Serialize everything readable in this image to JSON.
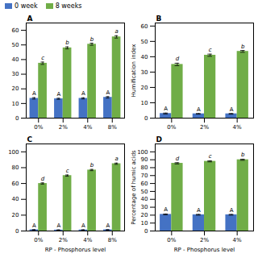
{
  "chart_data": [
    {
      "type": "bar",
      "title": "A",
      "categories": [
        "0%",
        "2%",
        "4%",
        "8%"
      ],
      "series": [
        {
          "name": "0 week",
          "color": "#4472c4",
          "values": [
            13.5,
            13.2,
            13.5,
            14.2
          ],
          "errors": [
            0.5,
            0.4,
            0.4,
            0.5
          ],
          "annotations": [
            "A",
            "A",
            "A",
            "A"
          ]
        },
        {
          "name": "8 weeks",
          "color": "#70ad47",
          "values": [
            37.5,
            48.0,
            50.5,
            55.5
          ],
          "errors": [
            0.8,
            0.7,
            0.7,
            0.8
          ],
          "annotations": [
            "c",
            "b",
            "b",
            "a"
          ]
        }
      ],
      "ylim": [
        0,
        65
      ],
      "yticks": [
        0,
        10,
        20,
        30,
        40,
        50,
        60
      ],
      "legend": "upper left"
    },
    {
      "type": "bar",
      "title": "B",
      "ylabel": "Humification index",
      "categories": [
        "0%",
        "2%",
        "4%"
      ],
      "series": [
        {
          "name": "0 week",
          "color": "#4472c4",
          "values": [
            3.0,
            2.8,
            2.8
          ],
          "errors": [
            0.3,
            0.2,
            0.2
          ],
          "annotations": [
            "A",
            "A",
            "A"
          ]
        },
        {
          "name": "8 weeks",
          "color": "#70ad47",
          "values": [
            35.0,
            41.0,
            43.5
          ],
          "errors": [
            0.8,
            0.7,
            0.6
          ],
          "annotations": [
            "d",
            "c",
            "b"
          ]
        }
      ],
      "ylim": [
        0,
        62
      ],
      "yticks": [
        0,
        10,
        20,
        30,
        40,
        50,
        60
      ]
    },
    {
      "type": "bar",
      "title": "C",
      "xlabel": "RP - Phosphorus level",
      "categories": [
        "0%",
        "2%",
        "4%",
        "8%"
      ],
      "series": [
        {
          "name": "0 week",
          "color": "#4472c4",
          "values": [
            1.5,
            1.2,
            1.3,
            1.5
          ],
          "errors": [
            0.2,
            0.2,
            0.2,
            0.2
          ],
          "annotations": [
            "A",
            "A",
            "A",
            "A"
          ]
        },
        {
          "name": "8 weeks",
          "color": "#70ad47",
          "values": [
            60.0,
            70.0,
            77.0,
            85.0
          ],
          "errors": [
            0.8,
            0.8,
            0.8,
            0.8
          ],
          "annotations": [
            "d",
            "c",
            "b",
            "a"
          ]
        }
      ],
      "ylim": [
        0,
        110
      ],
      "yticks": [
        0,
        20,
        40,
        60,
        80,
        100
      ]
    },
    {
      "type": "bar",
      "title": "D",
      "xlabel": "RP - Phosphorus level",
      "ylabel": "Percentage of humic acids",
      "categories": [
        "0%",
        "2%",
        "4%"
      ],
      "series": [
        {
          "name": "0 week",
          "color": "#4472c4",
          "values": [
            21.0,
            20.5,
            20.5
          ],
          "errors": [
            0.5,
            0.5,
            0.5
          ],
          "annotations": [
            "A",
            "A",
            "A"
          ]
        },
        {
          "name": "8 weeks",
          "color": "#70ad47",
          "values": [
            85.5,
            88.0,
            90.0
          ],
          "errors": [
            0.8,
            0.7,
            0.7
          ],
          "annotations": [
            "d",
            "c",
            "b"
          ]
        }
      ],
      "ylim": [
        0,
        110
      ],
      "yticks": [
        0,
        10,
        20,
        30,
        40,
        50,
        60,
        70,
        80,
        90,
        100
      ]
    }
  ]
}
